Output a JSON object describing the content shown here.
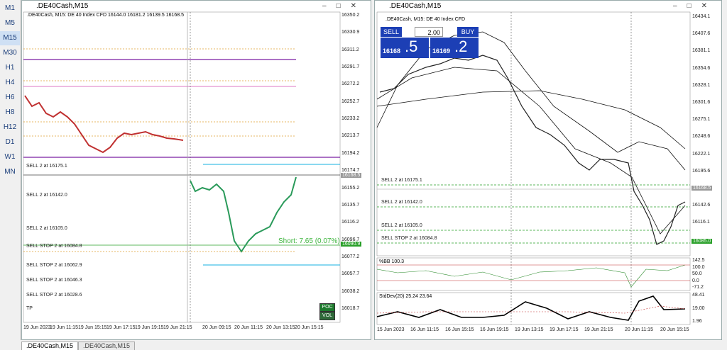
{
  "sidebar": {
    "timeframes": [
      "M1",
      "M5",
      "M15",
      "M30",
      "H1",
      "H4",
      "H6",
      "H8",
      "H12",
      "D1",
      "W1",
      "MN"
    ]
  },
  "windows": [
    {
      "title": ".DE40Cash,M15",
      "header": ".DE40Cash, M15: DE 40 Index CFD  16144.0 16181.2 16139.5 16168.5",
      "price_labels": [
        "16350.2",
        "16330.9",
        "16311.2",
        "16291.7",
        "16272.2",
        "16252.7",
        "16233.2",
        "16213.7",
        "16194.2",
        "16174.7",
        "16155.2",
        "16135.7",
        "16116.2",
        "16096.7",
        "16077.2",
        "16057.7",
        "16038.2",
        "16018.7"
      ],
      "bid_label": "16168.5",
      "order_label": "16090.9",
      "time_labels": [
        "19 Jun 2023",
        "19 Jun 11:15",
        "19 Jun 15:15",
        "19 Jun 17:15",
        "19 Jun 19:15",
        "19 Jun 21:15",
        "20 Jun 09:15",
        "20 Jun 11:15",
        "20 Jun 13:15",
        "20 Jun 15:15"
      ],
      "order_lines": [
        "SELL 2 at 16175.1",
        "SELL 2 at 16142.0",
        "SELL 2 at 16105.0",
        "SELL STOP 2 at 16084.8",
        "SELL STOP 2 at 16062.9",
        "SELL STOP 2 at 16046.3",
        "SELL STOP 2 at 16028.6",
        "TP"
      ],
      "position_text": "Short: 7.65  (0.07%)",
      "buttons": [
        "POC",
        "VOL"
      ]
    },
    {
      "title": ".DE40Cash,M15",
      "header": ".DE40Cash, M15:  DE 40 Index CFD",
      "price_labels": [
        "16434.1",
        "16407.6",
        "16381.1",
        "16354.6",
        "16328.1",
        "16301.6",
        "16275.1",
        "16248.6",
        "16222.1",
        "16195.6",
        "16168.5",
        "16142.6",
        "16116.1"
      ],
      "bid_label": "16168.5",
      "order_label": "16085.0",
      "time_labels": [
        "15 Jun 2023",
        "16 Jun 11:15",
        "16 Jun 15:15",
        "16 Jun 19:15",
        "19 Jun 13:15",
        "19 Jun 17:15",
        "19 Jun 21:15",
        "20 Jun 11:15",
        "20 Jun 15:15"
      ],
      "order_lines": [
        "SELL 2 at 16175.1",
        "SELL 2 at 16142.0",
        "SELL 2 at 16105.0",
        "SELL STOP 2 at 16084.8"
      ],
      "trade_panel": {
        "sell": "SELL",
        "volume": "2.00",
        "buy": "BUY",
        "bid_main": "16168",
        "bid_small": ".5",
        "ask_main": "16169",
        "ask_small": ".2"
      },
      "indicators": [
        {
          "label": "%BB 100.3",
          "levels": [
            "142.5",
            "100.0",
            "50.0",
            "0.0",
            "-71.2"
          ]
        },
        {
          "label": "StdDev(20) 25.24 23.64",
          "levels": [
            "48.41",
            "19.00",
            "1.96"
          ]
        }
      ]
    }
  ],
  "tabs": [
    ".DE40Cash,M15",
    ".DE40Cash,M15"
  ]
}
